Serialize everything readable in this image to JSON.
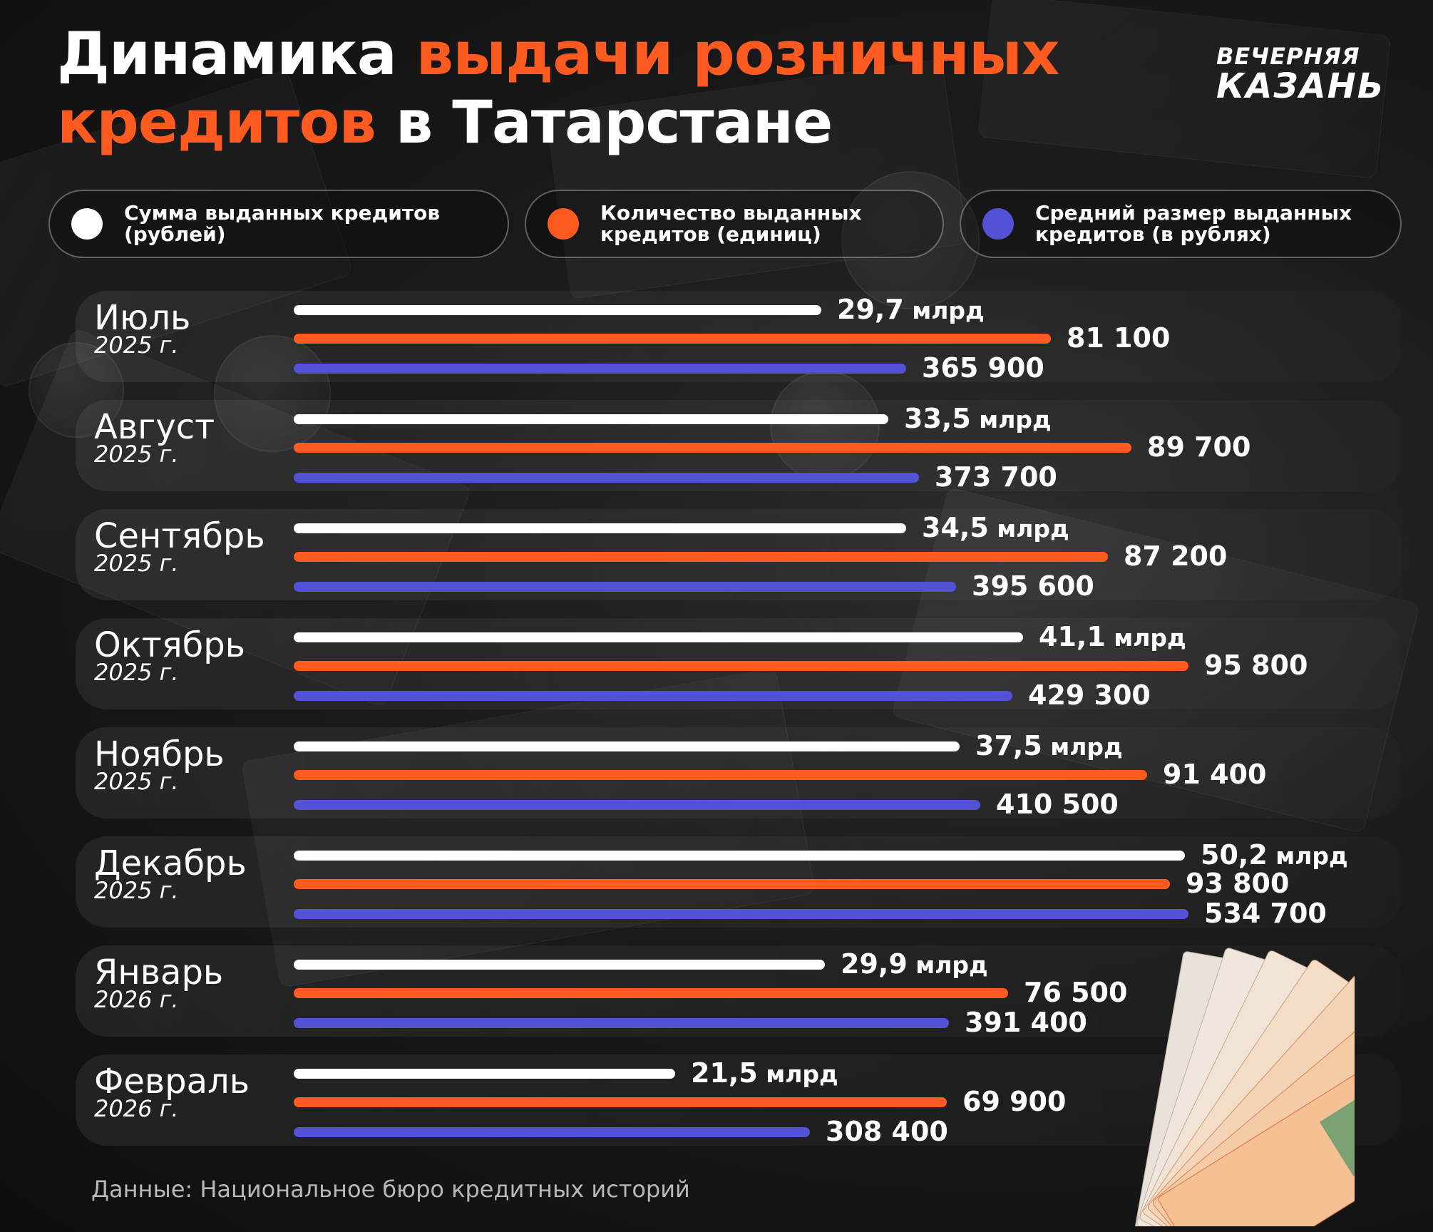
{
  "title": {
    "part1": "Динамика ",
    "part2": "выдачи розничных",
    "part3": "кредитов",
    "part4": " в Татарстане"
  },
  "logo": {
    "line1": "ВЕЧЕРНЯЯ",
    "line2": "КАЗАНЬ"
  },
  "colors": {
    "background": "#141414",
    "sum": "#ffffff",
    "count": "#ff5a1f",
    "average": "#5352d6",
    "accent": "#ff5a1f"
  },
  "chart_data": {
    "type": "bar",
    "orientation": "horizontal",
    "categories": [
      {
        "month": "Июль",
        "year": "2025 г."
      },
      {
        "month": "Август",
        "year": "2025 г."
      },
      {
        "month": "Сентябрь",
        "year": "2025 г."
      },
      {
        "month": "Октябрь",
        "year": "2025 г."
      },
      {
        "month": "Ноябрь",
        "year": "2025 г."
      },
      {
        "month": "Декабрь",
        "year": "2025 г."
      },
      {
        "month": "Январь",
        "year": "2026 г."
      },
      {
        "month": "Февраль",
        "year": "2026 г."
      }
    ],
    "series": [
      {
        "name": "Сумма выданных кредитов (рублей)",
        "color": "#ffffff",
        "values": [
          29.7,
          33.5,
          34.5,
          41.1,
          37.5,
          50.2,
          29.9,
          21.5
        ],
        "labels": [
          "29,7",
          "33,5",
          "34,5",
          "41,1",
          "37,5",
          "50,2",
          "29,9",
          "21,5"
        ],
        "unit": "млрд"
      },
      {
        "name": "Количество выданных кредитов (единиц)",
        "color": "#ff5a1f",
        "values": [
          81100,
          89700,
          87200,
          95800,
          91400,
          93800,
          76500,
          69900
        ],
        "labels": [
          "81 100",
          "89 700",
          "87 200",
          "95 800",
          "91 400",
          "93 800",
          "76 500",
          "69 900"
        ],
        "unit": ""
      },
      {
        "name": "Средний размер выданных кредитов (в рублях)",
        "color": "#5352d6",
        "values": [
          365900,
          373700,
          395600,
          429300,
          410500,
          534700,
          391400,
          308400
        ],
        "labels": [
          "365 900",
          "373 700",
          "395 600",
          "429 300",
          "410 500",
          "534 700",
          "391 400",
          "308 400"
        ],
        "unit": ""
      }
    ],
    "legend_position": "top",
    "grid": false
  },
  "legend": [
    {
      "text": "Сумма выданных кредитов (рублей)",
      "color": "#ffffff"
    },
    {
      "text": "Количество выданных кредитов (единиц)",
      "color": "#ff5a1f"
    },
    {
      "text": "Средний размер выданных кредитов (в рублях)",
      "color": "#5352d6"
    }
  ],
  "source": "Данные: Национальное бюро кредитных историй"
}
